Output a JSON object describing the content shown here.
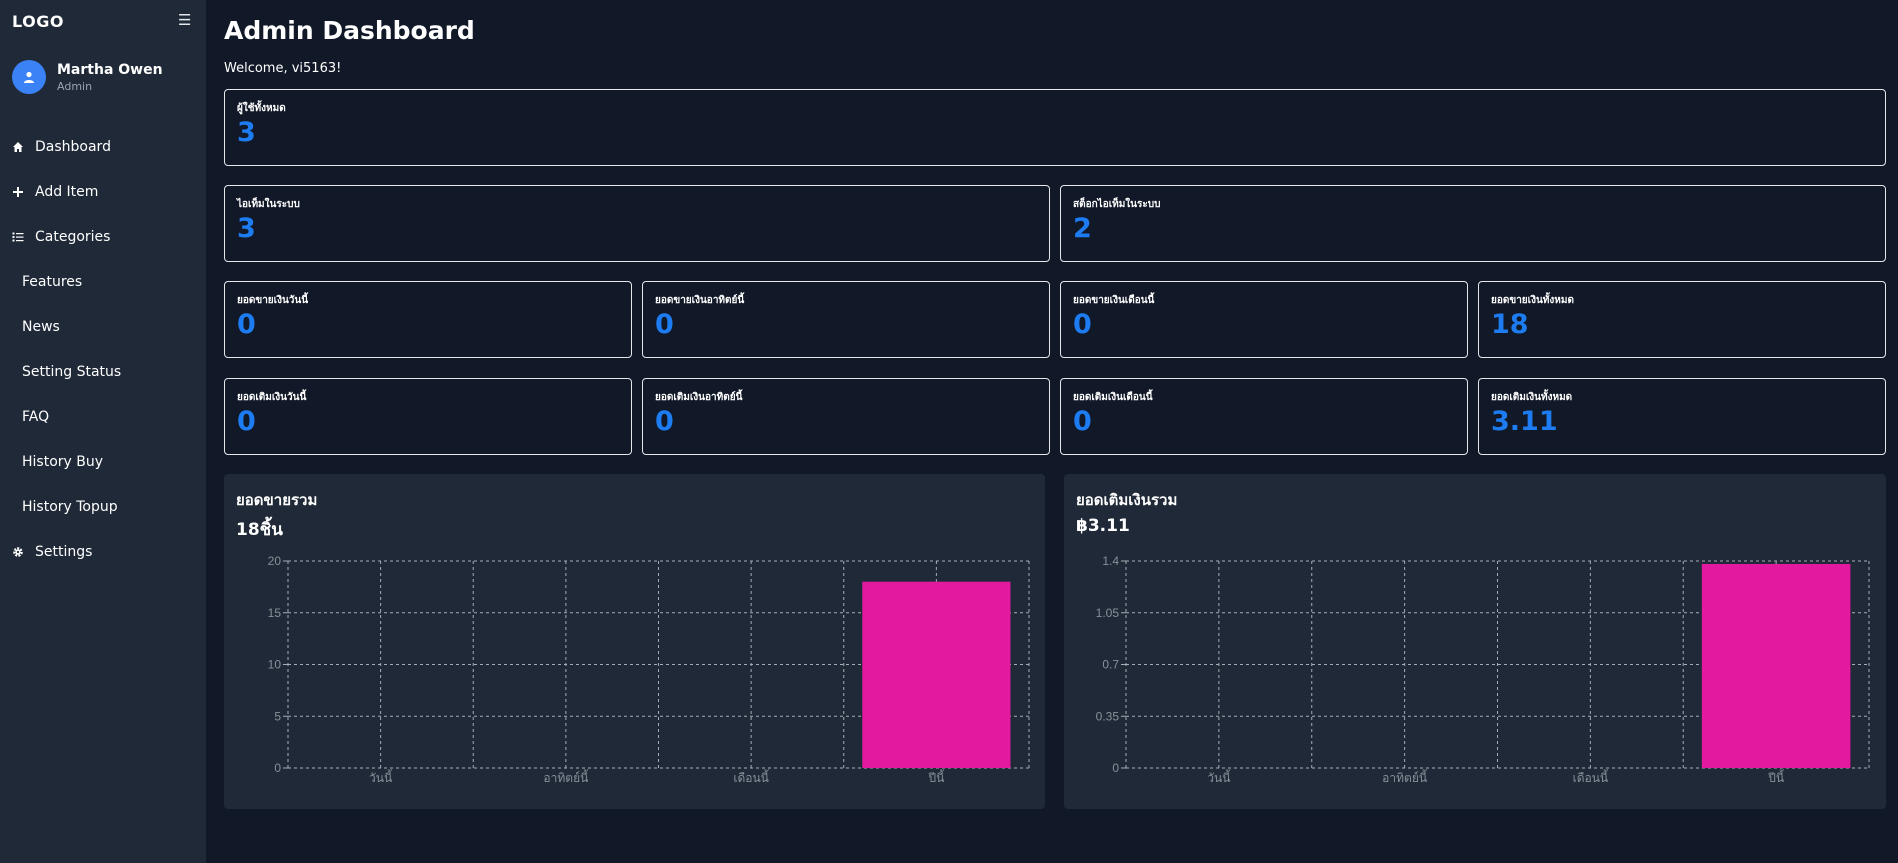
{
  "sidebar": {
    "logo": "LOGO",
    "menu_icon": "hamburger-icon",
    "user": {
      "name": "Martha Owen",
      "role": "Admin",
      "avatar_icon": "user-icon"
    },
    "nav": [
      {
        "label": "Dashboard",
        "icon": "home-icon"
      },
      {
        "label": "Add Item",
        "icon": "plus-icon"
      },
      {
        "label": "Categories",
        "icon": "list-icon"
      },
      {
        "label": "Features",
        "icon": ""
      },
      {
        "label": "News",
        "icon": ""
      },
      {
        "label": "Setting Status",
        "icon": ""
      },
      {
        "label": "FAQ",
        "icon": ""
      },
      {
        "label": "History Buy",
        "icon": ""
      },
      {
        "label": "History Topup",
        "icon": ""
      },
      {
        "label": "Settings",
        "icon": "gear-icon"
      }
    ]
  },
  "main": {
    "title": "Admin Dashboard",
    "welcome": "Welcome, vi5163!",
    "stats": {
      "total_users": {
        "label": "ผู้ใช้ทั้งหมด",
        "value": "3"
      },
      "items": {
        "label": "ไอเท็มในระบบ",
        "value": "3"
      },
      "stock": {
        "label": "สต็อกไอเท็มในระบบ",
        "value": "2"
      },
      "sales_today": {
        "label": "ยอดขายเงินวันนี้",
        "value": "0"
      },
      "sales_week": {
        "label": "ยอดขายเงินอาทิตย์นี้",
        "value": "0"
      },
      "sales_month": {
        "label": "ยอดขายเงินเดือนนี้",
        "value": "0"
      },
      "sales_total": {
        "label": "ยอดขายเงินทั้งหมด",
        "value": "18"
      },
      "topup_today": {
        "label": "ยอดเติมเงินวันนี้",
        "value": "0"
      },
      "topup_week": {
        "label": "ยอดเติมเงินอาทิตย์นี้",
        "value": "0"
      },
      "topup_month": {
        "label": "ยอดเติมเงินเดือนนี้",
        "value": "0"
      },
      "topup_total": {
        "label": "ยอดเติมเงินทั้งหมด",
        "value": "3.11"
      }
    },
    "accent_color": "#1d7cf2",
    "bar_color": "#e3199f"
  },
  "chart_data": [
    {
      "type": "bar",
      "title": "ยอดขายรวม",
      "total": "18ชิ้น",
      "categories": [
        "วันนี้",
        "อาทิตย์นี้",
        "เดือนนี้",
        "ปีนี้"
      ],
      "values": [
        0,
        0,
        0,
        18
      ],
      "yticks": [
        "0",
        "5",
        "10",
        "15",
        "20"
      ],
      "ylim": [
        0,
        20
      ],
      "grid": true
    },
    {
      "type": "bar",
      "title": "ยอดเติมเงินรวม",
      "total": "฿3.11",
      "categories": [
        "วันนี้",
        "อาทิตย์นี้",
        "เดือนนี้",
        "ปีนี้"
      ],
      "values": [
        0,
        0,
        0,
        1.38
      ],
      "yticks": [
        "0",
        "0.35",
        "0.7",
        "1.05",
        "1.4"
      ],
      "ylim": [
        0,
        1.4
      ],
      "grid": true
    }
  ]
}
